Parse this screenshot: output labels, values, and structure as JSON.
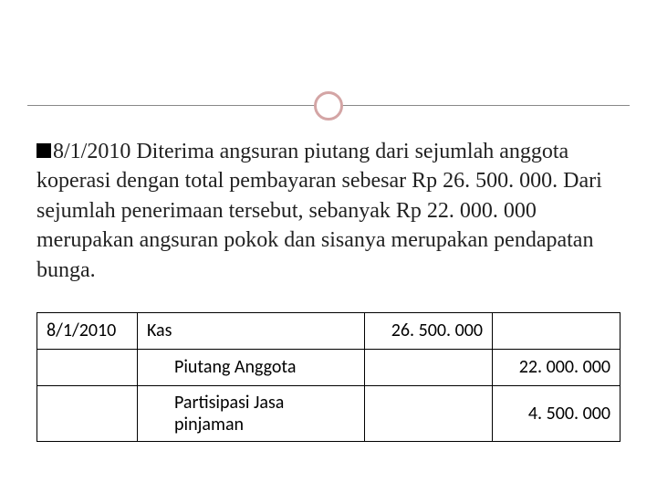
{
  "ornament": {
    "circle_border_color": "#d4a5a5",
    "line_color": "#888888"
  },
  "paragraph": {
    "date_prefix": "8/1/2010",
    "body": "Diterima angsuran piutang dari sejumlah anggota koperasi dengan total pembayaran sebesar Rp 26. 500. 000. Dari sejumlah penerimaan tersebut, sebanyak Rp 22. 000. 000 merupakan angsuran pokok dan sisanya merupakan pendapatan bunga."
  },
  "journal": {
    "rows": [
      {
        "date": "8/1/2010",
        "description": "Kas",
        "debit": "26. 500. 000",
        "credit": "",
        "indent": false
      },
      {
        "date": "",
        "description": "Piutang Anggota",
        "debit": "",
        "credit": "22. 000. 000",
        "indent": true
      },
      {
        "date": "",
        "description": "Partisipasi Jasa pinjaman",
        "debit": "",
        "credit": "4. 500. 000",
        "indent": true
      }
    ]
  },
  "colors": {
    "text": "#222222",
    "border": "#000000",
    "background": "#ffffff"
  },
  "fonts": {
    "paragraph_family": "Georgia",
    "paragraph_size_pt": 18,
    "table_family": "Calibri",
    "table_size_pt": 15
  }
}
